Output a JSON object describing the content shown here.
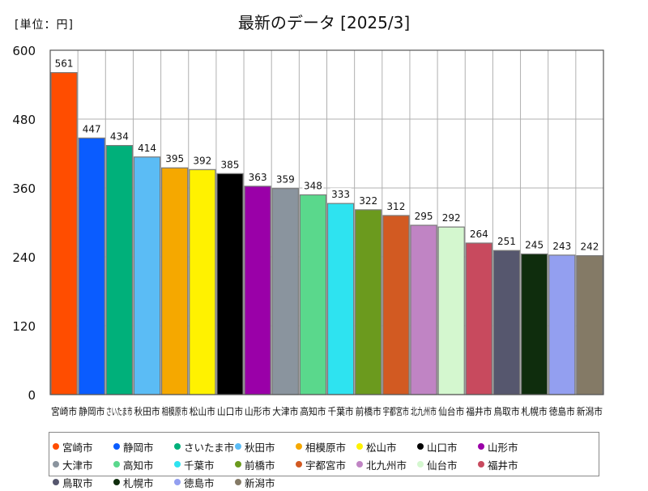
{
  "chart_data": {
    "type": "bar",
    "unit_label": "[単位：円]",
    "title": "最新のデータ [2025/3]",
    "ylim": [
      0,
      600
    ],
    "yticks": [
      0,
      120,
      240,
      360,
      480,
      600
    ],
    "categories": [
      "宮崎市",
      "静岡市",
      "さいたま市",
      "秋田市",
      "相模原市",
      "松山市",
      "山口市",
      "山形市",
      "大津市",
      "高知市",
      "千葉市",
      "前橋市",
      "宇都宮市",
      "北九州市",
      "仙台市",
      "福井市",
      "鳥取市",
      "札幌市",
      "徳島市",
      "新潟市"
    ],
    "values": [
      561,
      447,
      434,
      414,
      395,
      392,
      385,
      363,
      359,
      348,
      333,
      322,
      312,
      295,
      292,
      264,
      251,
      245,
      243,
      242
    ],
    "colors": [
      "#ff4d00",
      "#0a5cff",
      "#00b07a",
      "#5bbcf5",
      "#f5a800",
      "#fff200",
      "#000000",
      "#9a00a8",
      "#8a949e",
      "#5ad88c",
      "#2ee3f0",
      "#6b9a1e",
      "#d25a22",
      "#c084c4",
      "#d4f7cf",
      "#c84a5e",
      "#56576e",
      "#0f2d0d",
      "#939ff0",
      "#847a66"
    ],
    "grid": true,
    "legend_position": "bottom"
  }
}
